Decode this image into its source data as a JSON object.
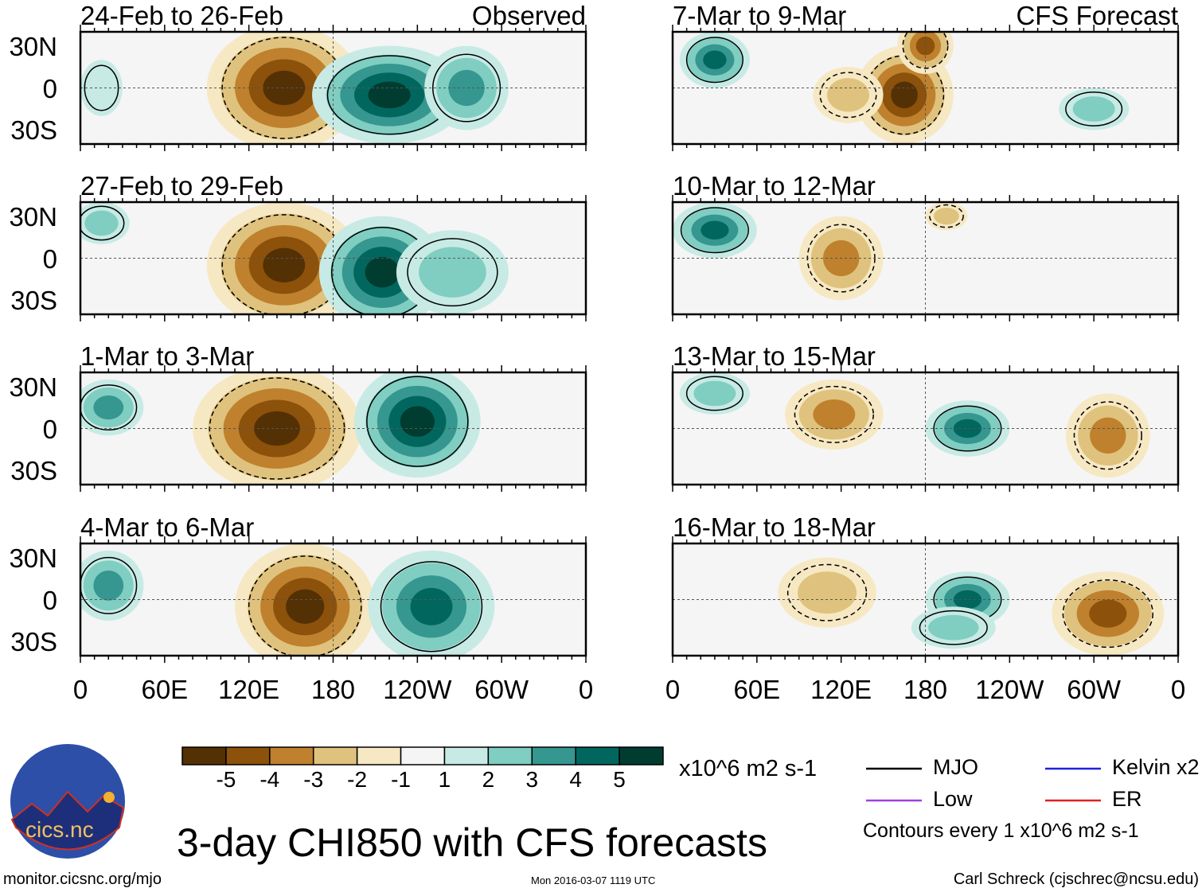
{
  "title": "3-day CHI850 with CFS forecasts",
  "url": "monitor.cicsnc.org/mjo",
  "timestamp": "Mon 2016-03-07 1119 UTC",
  "author": "Carl Schreck (cjschrec@ncsu.edu)",
  "logo_text": "cics.nc",
  "units": "x10^6 m2 s-1",
  "contour_note": "Contours every 1 x10^6 m2 s-1",
  "observed_label": "Observed",
  "forecast_label": "CFS Forecast",
  "legend": [
    {
      "label": "MJO",
      "color": "#000000"
    },
    {
      "label": "Kelvin x2",
      "color": "#2020e0"
    },
    {
      "label": "Low",
      "color": "#a040e0"
    },
    {
      "label": "ER",
      "color": "#e02020"
    }
  ],
  "chart_data": {
    "type": "heatmap",
    "colorbar": {
      "ticks": [
        "-5",
        "-4",
        "-3",
        "-2",
        "-1",
        "1",
        "2",
        "3",
        "4",
        "5"
      ],
      "colors": [
        "#543005",
        "#8c510a",
        "#bf812d",
        "#dfc27d",
        "#f6e8c3",
        "#f5f5f5",
        "#c7eae5",
        "#80cdc1",
        "#35978f",
        "#01665e",
        "#003c30"
      ]
    },
    "yticks": [
      "30N",
      "0",
      "30S"
    ],
    "xticks": [
      "0",
      "60E",
      "120E",
      "180",
      "120W",
      "60W",
      "0"
    ],
    "lon_range": [
      0,
      360
    ],
    "lat_range": [
      -40,
      40
    ],
    "panels": [
      {
        "title": "24-Feb to 26-Feb",
        "col": 0,
        "row": 0,
        "features": [
          {
            "lon": 145,
            "lat": 0,
            "v": -5,
            "rlon": 55,
            "rlat": 45
          },
          {
            "lon": 220,
            "lat": -5,
            "v": 5,
            "rlon": 55,
            "rlat": 35
          },
          {
            "lon": 275,
            "lat": 0,
            "v": 3,
            "rlon": 30,
            "rlat": 30
          },
          {
            "lon": 15,
            "lat": 0,
            "v": 1,
            "rlon": 15,
            "rlat": 20
          }
        ]
      },
      {
        "title": "27-Feb to 29-Feb",
        "col": 0,
        "row": 1,
        "features": [
          {
            "lon": 145,
            "lat": -5,
            "v": -5,
            "rlon": 55,
            "rlat": 45
          },
          {
            "lon": 215,
            "lat": -10,
            "v": 5,
            "rlon": 45,
            "rlat": 40
          },
          {
            "lon": 265,
            "lat": -10,
            "v": 2,
            "rlon": 40,
            "rlat": 30
          },
          {
            "lon": 15,
            "lat": 25,
            "v": 2,
            "rlon": 20,
            "rlat": 15
          }
        ]
      },
      {
        "title": "1-Mar to 3-Mar",
        "col": 0,
        "row": 2,
        "features": [
          {
            "lon": 140,
            "lat": 0,
            "v": -5,
            "rlon": 60,
            "rlat": 45
          },
          {
            "lon": 240,
            "lat": 5,
            "v": 5,
            "rlon": 45,
            "rlat": 40
          },
          {
            "lon": 20,
            "lat": 15,
            "v": 3,
            "rlon": 25,
            "rlat": 20
          }
        ]
      },
      {
        "title": "4-Mar to 6-Mar",
        "col": 0,
        "row": 3,
        "features": [
          {
            "lon": 160,
            "lat": -5,
            "v": -5,
            "rlon": 50,
            "rlat": 45
          },
          {
            "lon": 250,
            "lat": -5,
            "v": 4,
            "rlon": 45,
            "rlat": 40
          },
          {
            "lon": 20,
            "lat": 10,
            "v": 3,
            "rlon": 25,
            "rlat": 25
          }
        ]
      },
      {
        "title": "7-Mar to 9-Mar",
        "col": 1,
        "row": 0,
        "features": [
          {
            "lon": 165,
            "lat": -5,
            "v": -5,
            "rlon": 35,
            "rlat": 35
          },
          {
            "lon": 180,
            "lat": 30,
            "v": -4,
            "rlon": 20,
            "rlat": 20
          },
          {
            "lon": 125,
            "lat": -5,
            "v": -2,
            "rlon": 25,
            "rlat": 20
          },
          {
            "lon": 30,
            "lat": 20,
            "v": 4,
            "rlon": 25,
            "rlat": 20
          },
          {
            "lon": 300,
            "lat": -15,
            "v": 2,
            "rlon": 25,
            "rlat": 15
          }
        ]
      },
      {
        "title": "10-Mar to 12-Mar",
        "col": 1,
        "row": 1,
        "features": [
          {
            "lon": 120,
            "lat": 0,
            "v": -3,
            "rlon": 30,
            "rlat": 30
          },
          {
            "lon": 30,
            "lat": 20,
            "v": 4,
            "rlon": 30,
            "rlat": 20
          },
          {
            "lon": 195,
            "lat": 30,
            "v": -2,
            "rlon": 15,
            "rlat": 10
          }
        ]
      },
      {
        "title": "13-Mar to 15-Mar",
        "col": 1,
        "row": 2,
        "features": [
          {
            "lon": 115,
            "lat": 10,
            "v": -3,
            "rlon": 35,
            "rlat": 25
          },
          {
            "lon": 210,
            "lat": 0,
            "v": 4,
            "rlon": 30,
            "rlat": 20
          },
          {
            "lon": 310,
            "lat": -5,
            "v": -3,
            "rlon": 30,
            "rlat": 30
          },
          {
            "lon": 30,
            "lat": 25,
            "v": 2,
            "rlon": 25,
            "rlat": 15
          }
        ]
      },
      {
        "title": "16-Mar to 18-Mar",
        "col": 1,
        "row": 3,
        "features": [
          {
            "lon": 110,
            "lat": 5,
            "v": -2,
            "rlon": 35,
            "rlat": 25
          },
          {
            "lon": 210,
            "lat": 0,
            "v": 4,
            "rlon": 30,
            "rlat": 20
          },
          {
            "lon": 310,
            "lat": -10,
            "v": -4,
            "rlon": 40,
            "rlat": 30
          },
          {
            "lon": 200,
            "lat": -20,
            "v": 2,
            "rlon": 30,
            "rlat": 15
          }
        ]
      }
    ]
  }
}
